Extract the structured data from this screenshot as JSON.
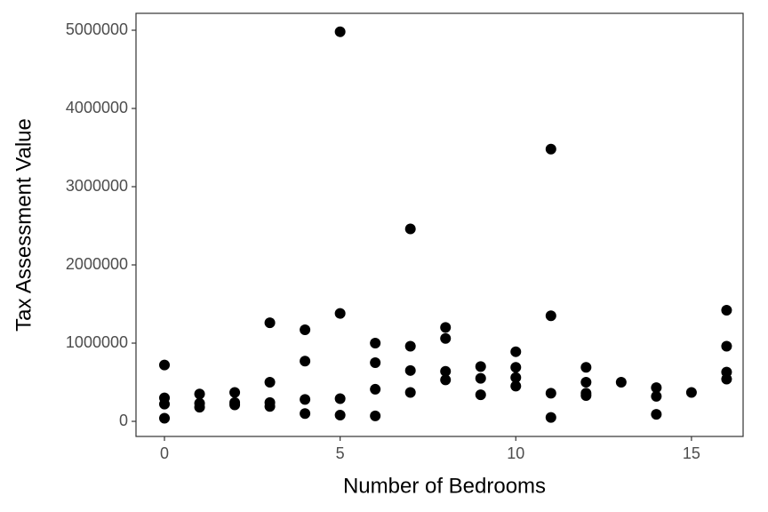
{
  "chart_data": {
    "type": "scatter",
    "x_label": "Number of Bedrooms",
    "y_label": "Tax Assessment Value",
    "x": [
      0,
      0,
      0,
      0,
      1,
      1,
      1,
      2,
      2,
      2,
      3,
      3,
      3,
      3,
      4,
      4,
      4,
      4,
      5,
      5,
      5,
      5,
      6,
      6,
      6,
      6,
      7,
      7,
      7,
      7,
      8,
      8,
      8,
      8,
      9,
      9,
      9,
      10,
      10,
      10,
      10,
      11,
      11,
      11,
      11,
      12,
      12,
      12,
      12,
      13,
      14,
      14,
      14,
      15,
      16,
      16,
      16,
      16
    ],
    "values": [
      720000,
      300000,
      220000,
      40000,
      350000,
      230000,
      180000,
      370000,
      240000,
      210000,
      1260000,
      500000,
      240000,
      190000,
      1170000,
      770000,
      280000,
      100000,
      4980000,
      1380000,
      290000,
      80000,
      1000000,
      750000,
      410000,
      70000,
      2460000,
      960000,
      650000,
      370000,
      1200000,
      1060000,
      640000,
      530000,
      700000,
      550000,
      340000,
      890000,
      690000,
      560000,
      450000,
      3480000,
      1350000,
      360000,
      50000,
      690000,
      500000,
      360000,
      330000,
      500000,
      430000,
      320000,
      90000,
      370000,
      1420000,
      960000,
      630000,
      540000
    ],
    "color": "#000000",
    "xlim": [
      -0.81,
      16.47
    ],
    "ylim": [
      -193000,
      5216000
    ],
    "xticks": [
      0,
      5,
      10,
      15
    ],
    "yticks": [
      0,
      1000000,
      2000000,
      3000000,
      4000000,
      5000000
    ],
    "grid": false
  }
}
